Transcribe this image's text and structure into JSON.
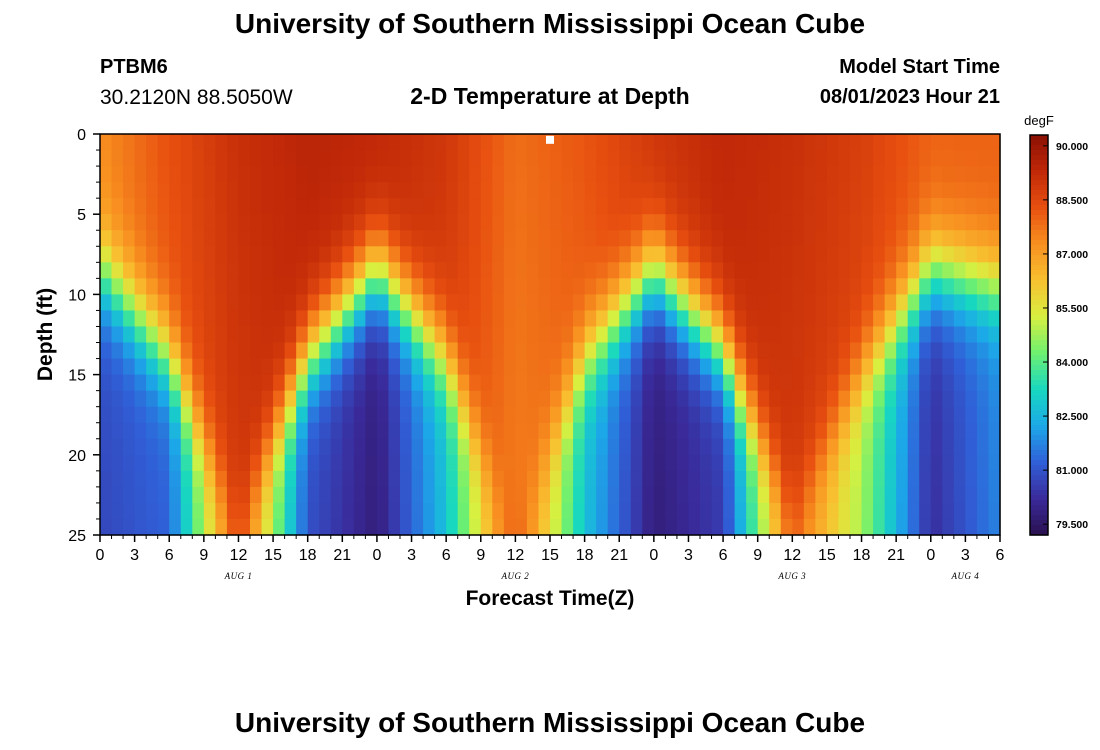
{
  "header": {
    "title": "University of Southern Mississippi Ocean Cube",
    "station_id": "PTBM6",
    "coordinates": "30.2120N  88.5050W",
    "subtitle": "2-D Temperature at Depth",
    "model_start_label": "Model Start Time",
    "model_start_value": "08/01/2023 Hour 21"
  },
  "footer": {
    "title": "University of Southern Mississippi Ocean Cube"
  },
  "colors": {
    "colormap": [
      "#2a1050",
      "#3a2a9a",
      "#3060d8",
      "#1ca8e8",
      "#18d8c0",
      "#6ef070",
      "#d8f040",
      "#f8c030",
      "#f89020",
      "#e85010",
      "#c02808",
      "#8a1004"
    ]
  },
  "chart_data": {
    "type": "heatmap",
    "title": "2-D Temperature at Depth",
    "xlabel": "Forecast Time(Z)",
    "ylabel": "Depth (ft)",
    "x_tick_labels": [
      "0",
      "3",
      "6",
      "9",
      "12",
      "15",
      "18",
      "21",
      "0",
      "3",
      "6",
      "9",
      "12",
      "15",
      "18",
      "21",
      "0",
      "3",
      "6",
      "9",
      "12",
      "15",
      "18",
      "21",
      "0",
      "3",
      "6"
    ],
    "x_hours_range": [
      0,
      78
    ],
    "date_labels": [
      {
        "label": "AUG 1",
        "hour": 12
      },
      {
        "label": "AUG 2",
        "hour": 36
      },
      {
        "label": "AUG 3",
        "hour": 60
      },
      {
        "label": "AUG 4",
        "hour": 75
      }
    ],
    "y_ticks": [
      0,
      5,
      10,
      15,
      20,
      25
    ],
    "ylim": [
      0,
      25
    ],
    "y_inverted": true,
    "colorbar": {
      "unit": "degF",
      "ticks": [
        "90.000",
        "88.500",
        "87.000",
        "85.500",
        "84.000",
        "82.500",
        "81.000",
        "79.500"
      ],
      "range": [
        79.2,
        90.3
      ]
    },
    "marker": {
      "hour": 39,
      "depth": 0.3
    },
    "surface_temp_degF": [
      87.3,
      88.3,
      89.1,
      89.4,
      89.3,
      88.9,
      87.8,
      88.2,
      88.9,
      89.3,
      89.1,
      88.7,
      88.0,
      88.0
    ],
    "thermocline_depth_ft": [
      8.5,
      14,
      24.5,
      14,
      8.5,
      14,
      25.5,
      14,
      8.5,
      13.5,
      24,
      15,
      8.5,
      9.5
    ],
    "bottom_temp_degF": [
      81.0,
      81.5,
      88.6,
      81.2,
      80.0,
      83.0,
      88.6,
      83.0,
      80.0,
      80.8,
      88.0,
      85.0,
      80.5,
      82.0
    ],
    "profile_hours": [
      0,
      6,
      12,
      18,
      24,
      30,
      36,
      42,
      48,
      54,
      60,
      66,
      72,
      78
    ]
  }
}
